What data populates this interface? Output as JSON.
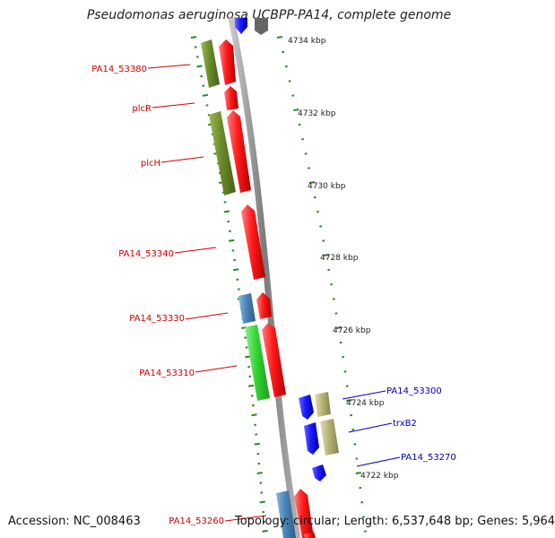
{
  "title": "Pseudomonas aeruginosa UCBPP-PA14, complete genome",
  "footer": {
    "accession": "Accession: NC_008463",
    "summary": "Topology: circular; Length: 6,537,648 bp; Genes: 5,964"
  },
  "colors": {
    "backbone": "#7a7a7a",
    "tick": "#2a8a2a",
    "minus_label": "#d00000",
    "plus_label": "#0000c0",
    "gene_red": "#ff1a1a",
    "gene_olive": "#6b8c2a",
    "gene_green": "#33d633",
    "gene_steel": "#4a86b8",
    "gene_blue": "#1a1aff",
    "gene_khaki": "#b8b478"
  },
  "scale_labels": [
    "4734 kbp",
    "4732 kbp",
    "4730 kbp",
    "4728 kbp",
    "4726 kbp",
    "4724 kbp",
    "4722 kbp"
  ],
  "gene_labels": [
    {
      "text": "PA14_53380",
      "strand": "minus"
    },
    {
      "text": "plcR",
      "strand": "minus"
    },
    {
      "text": "plcH",
      "strand": "minus"
    },
    {
      "text": "PA14_53340",
      "strand": "minus"
    },
    {
      "text": "PA14_53330",
      "strand": "minus"
    },
    {
      "text": "PA14_53310",
      "strand": "minus"
    },
    {
      "text": "PA14_53300",
      "strand": "plus"
    },
    {
      "text": "trxB2",
      "strand": "plus"
    },
    {
      "text": "PA14_53270",
      "strand": "plus"
    },
    {
      "text": "PA14_53260",
      "strand": "minus"
    }
  ]
}
